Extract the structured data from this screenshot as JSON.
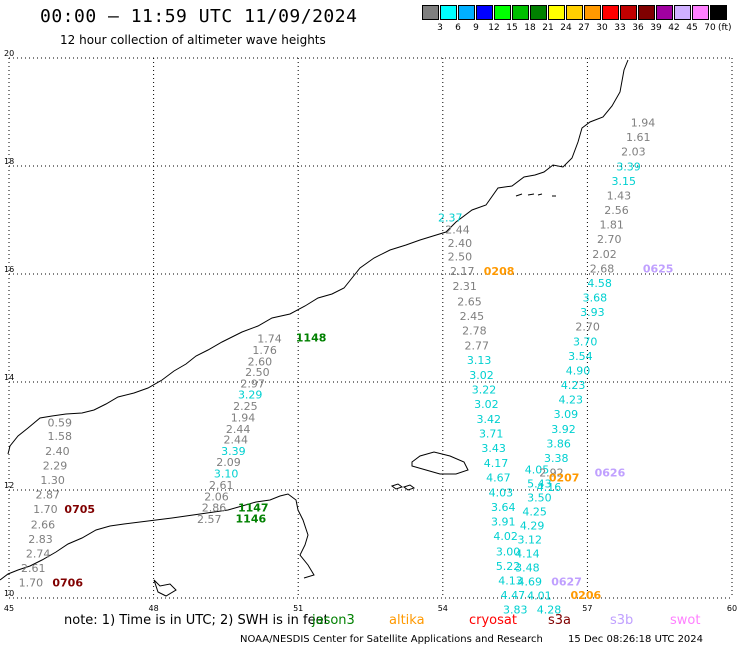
{
  "header": {
    "title": "00:00 – 11:59 UTC 11/09/2024",
    "subtitle": "12 hour collection of altimeter wave heights"
  },
  "colorbar": {
    "unit": "(ft)",
    "entries": [
      {
        "label": "3",
        "color": "#7f7f7f"
      },
      {
        "label": "6",
        "color": "#00ffff"
      },
      {
        "label": "9",
        "color": "#00b0ff"
      },
      {
        "label": "12",
        "color": "#0000ff"
      },
      {
        "label": "15",
        "color": "#00ff00"
      },
      {
        "label": "18",
        "color": "#00c000"
      },
      {
        "label": "21",
        "color": "#008000"
      },
      {
        "label": "24",
        "color": "#ffff00"
      },
      {
        "label": "27",
        "color": "#ffd000"
      },
      {
        "label": "30",
        "color": "#ff9900"
      },
      {
        "label": "33",
        "color": "#ff0000"
      },
      {
        "label": "36",
        "color": "#c00000"
      },
      {
        "label": "39",
        "color": "#800000"
      },
      {
        "label": "42",
        "color": "#a000a0"
      },
      {
        "label": "45",
        "color": "#d0b0ff"
      },
      {
        "label": "70",
        "color": "#ff80ff"
      },
      {
        "label": "",
        "color": "#000000"
      }
    ]
  },
  "axes": {
    "lon_ticks": [
      "45",
      "48",
      "51",
      "54",
      "57",
      "60"
    ],
    "lat_ticks": [
      "10",
      "12",
      "14",
      "16",
      "18",
      "20"
    ],
    "grid": true
  },
  "tracks": [
    {
      "labels": [
        {
          "text": "0.59",
          "lon": 45.8,
          "lat": 13.18,
          "color": "#7f7f7f"
        },
        {
          "text": "1.58",
          "lon": 45.8,
          "lat": 12.93,
          "color": "#7f7f7f"
        },
        {
          "text": "2.40",
          "lon": 45.75,
          "lat": 12.65,
          "color": "#7f7f7f"
        },
        {
          "text": "2.29",
          "lon": 45.7,
          "lat": 12.38,
          "color": "#7f7f7f"
        },
        {
          "text": "1.30",
          "lon": 45.65,
          "lat": 12.11,
          "color": "#7f7f7f"
        },
        {
          "text": "2.87",
          "lon": 45.55,
          "lat": 11.84,
          "color": "#7f7f7f"
        },
        {
          "text": "1.70",
          "lon": 45.5,
          "lat": 11.57,
          "color": "#7f7f7f"
        },
        {
          "text": "2.66",
          "lon": 45.45,
          "lat": 11.29,
          "color": "#7f7f7f"
        },
        {
          "text": "2.83",
          "lon": 45.4,
          "lat": 11.02,
          "color": "#7f7f7f"
        },
        {
          "text": "2.74",
          "lon": 45.35,
          "lat": 10.75,
          "color": "#7f7f7f"
        },
        {
          "text": "2.61",
          "lon": 45.25,
          "lat": 10.48,
          "color": "#7f7f7f"
        },
        {
          "text": "1.70",
          "lon": 45.2,
          "lat": 10.21,
          "color": "#7f7f7f"
        }
      ]
    },
    {
      "labels": [
        {
          "text": "1.74",
          "lon": 50.15,
          "lat": 14.73,
          "color": "#7f7f7f"
        },
        {
          "text": "1.76",
          "lon": 50.05,
          "lat": 14.52,
          "color": "#7f7f7f"
        },
        {
          "text": "2.60",
          "lon": 49.95,
          "lat": 14.31,
          "color": "#7f7f7f"
        },
        {
          "text": "2.50",
          "lon": 49.9,
          "lat": 14.11,
          "color": "#7f7f7f"
        },
        {
          "text": "2.97",
          "lon": 49.8,
          "lat": 13.9,
          "color": "#7f7f7f"
        },
        {
          "text": "3.29",
          "lon": 49.75,
          "lat": 13.69,
          "color": "#00d0d0"
        },
        {
          "text": "2.25",
          "lon": 49.65,
          "lat": 13.48,
          "color": "#7f7f7f"
        },
        {
          "text": "1.94",
          "lon": 49.6,
          "lat": 13.27,
          "color": "#7f7f7f"
        },
        {
          "text": "2.44",
          "lon": 49.5,
          "lat": 13.06,
          "color": "#7f7f7f"
        },
        {
          "text": "2.44",
          "lon": 49.45,
          "lat": 12.86,
          "color": "#7f7f7f"
        },
        {
          "text": "3.39",
          "lon": 49.4,
          "lat": 12.65,
          "color": "#00d0d0"
        },
        {
          "text": "2.09",
          "lon": 49.3,
          "lat": 12.44,
          "color": "#7f7f7f"
        },
        {
          "text": "3.10",
          "lon": 49.25,
          "lat": 12.23,
          "color": "#00d0d0"
        },
        {
          "text": "2.61",
          "lon": 49.15,
          "lat": 12.02,
          "color": "#7f7f7f"
        },
        {
          "text": "2.06",
          "lon": 49.05,
          "lat": 11.81,
          "color": "#7f7f7f"
        },
        {
          "text": "2.86",
          "lon": 49.0,
          "lat": 11.6,
          "color": "#7f7f7f"
        },
        {
          "text": "2.57",
          "lon": 48.9,
          "lat": 11.39,
          "color": "#7f7f7f"
        }
      ]
    },
    {
      "labels": [
        {
          "text": "2.37",
          "lon": 53.9,
          "lat": 16.97,
          "color": "#00d0d0"
        },
        {
          "text": "2.44",
          "lon": 54.05,
          "lat": 16.75,
          "color": "#7f7f7f"
        },
        {
          "text": "2.40",
          "lon": 54.1,
          "lat": 16.5,
          "color": "#7f7f7f"
        },
        {
          "text": "2.50",
          "lon": 54.1,
          "lat": 16.25,
          "color": "#7f7f7f"
        },
        {
          "text": "2.17",
          "lon": 54.15,
          "lat": 15.98,
          "color": "#7f7f7f"
        },
        {
          "text": "2.31",
          "lon": 54.2,
          "lat": 15.7,
          "color": "#7f7f7f"
        },
        {
          "text": "2.65",
          "lon": 54.3,
          "lat": 15.42,
          "color": "#7f7f7f"
        },
        {
          "text": "2.45",
          "lon": 54.35,
          "lat": 15.15,
          "color": "#7f7f7f"
        },
        {
          "text": "2.78",
          "lon": 54.4,
          "lat": 14.88,
          "color": "#7f7f7f"
        },
        {
          "text": "2.77",
          "lon": 54.45,
          "lat": 14.6,
          "color": "#7f7f7f"
        },
        {
          "text": "3.13",
          "lon": 54.5,
          "lat": 14.33,
          "color": "#00d0d0"
        },
        {
          "text": "3.02",
          "lon": 54.55,
          "lat": 14.06,
          "color": "#00d0d0"
        },
        {
          "text": "3.22",
          "lon": 54.6,
          "lat": 13.79,
          "color": "#00d0d0"
        },
        {
          "text": "3.02",
          "lon": 54.65,
          "lat": 13.52,
          "color": "#00d0d0"
        },
        {
          "text": "3.42",
          "lon": 54.7,
          "lat": 13.24,
          "color": "#00d0d0"
        },
        {
          "text": "3.71",
          "lon": 54.75,
          "lat": 12.97,
          "color": "#00d0d0"
        },
        {
          "text": "3.43",
          "lon": 54.8,
          "lat": 12.7,
          "color": "#00d0d0"
        },
        {
          "text": "4.17",
          "lon": 54.85,
          "lat": 12.43,
          "color": "#00d0d0"
        },
        {
          "text": "4.67",
          "lon": 54.9,
          "lat": 12.16,
          "color": "#00d0d0"
        },
        {
          "text": "4.03",
          "lon": 54.95,
          "lat": 11.88,
          "color": "#00d0d0"
        },
        {
          "text": "3.64",
          "lon": 55.0,
          "lat": 11.61,
          "color": "#00d0d0"
        },
        {
          "text": "3.91",
          "lon": 55.0,
          "lat": 11.34,
          "color": "#00d0d0"
        },
        {
          "text": "4.02",
          "lon": 55.05,
          "lat": 11.07,
          "color": "#00d0d0"
        },
        {
          "text": "3.00",
          "lon": 55.1,
          "lat": 10.79,
          "color": "#00d0d0"
        },
        {
          "text": "5.22",
          "lon": 55.1,
          "lat": 10.52,
          "color": "#00d0d0"
        },
        {
          "text": "4.13",
          "lon": 55.15,
          "lat": 10.25,
          "color": "#00d0d0"
        },
        {
          "text": "4.47",
          "lon": 55.2,
          "lat": 9.98,
          "color": "#00d0d0"
        },
        {
          "text": "3.83",
          "lon": 55.25,
          "lat": 9.71,
          "color": "#00d0d0"
        }
      ]
    },
    {
      "labels": [
        {
          "text": "4.05",
          "lon": 55.7,
          "lat": 12.31,
          "color": "#00d0d0"
        },
        {
          "text": "5.43",
          "lon": 55.75,
          "lat": 12.05,
          "color": "#00d0d0"
        },
        {
          "text": "3.50",
          "lon": 55.75,
          "lat": 11.79,
          "color": "#00d0d0"
        },
        {
          "text": "4.25",
          "lon": 55.65,
          "lat": 11.53,
          "color": "#00d0d0"
        },
        {
          "text": "4.29",
          "lon": 55.6,
          "lat": 11.27,
          "color": "#00d0d0"
        },
        {
          "text": "3.12",
          "lon": 55.55,
          "lat": 11.01,
          "color": "#00d0d0"
        },
        {
          "text": "4.14",
          "lon": 55.5,
          "lat": 10.75,
          "color": "#00d0d0"
        },
        {
          "text": "3.48",
          "lon": 55.5,
          "lat": 10.49,
          "color": "#00d0d0"
        },
        {
          "text": "4.69",
          "lon": 55.55,
          "lat": 10.23,
          "color": "#00d0d0"
        },
        {
          "text": "4.01",
          "lon": 55.75,
          "lat": 9.97,
          "color": "#00d0d0"
        },
        {
          "text": "4.28",
          "lon": 55.95,
          "lat": 9.71,
          "color": "#00d0d0"
        }
      ]
    },
    {
      "labels": [
        {
          "text": "1.94",
          "lon": 57.9,
          "lat": 18.73,
          "color": "#7f7f7f"
        },
        {
          "text": "1.61",
          "lon": 57.8,
          "lat": 18.46,
          "color": "#7f7f7f"
        },
        {
          "text": "2.03",
          "lon": 57.7,
          "lat": 18.19,
          "color": "#7f7f7f"
        },
        {
          "text": "3.39",
          "lon": 57.6,
          "lat": 17.92,
          "color": "#00d0d0"
        },
        {
          "text": "3.15",
          "lon": 57.5,
          "lat": 17.65,
          "color": "#00d0d0"
        },
        {
          "text": "1.43",
          "lon": 57.4,
          "lat": 17.38,
          "color": "#7f7f7f"
        },
        {
          "text": "2.56",
          "lon": 57.35,
          "lat": 17.11,
          "color": "#7f7f7f"
        },
        {
          "text": "1.81",
          "lon": 57.25,
          "lat": 16.84,
          "color": "#7f7f7f"
        },
        {
          "text": "2.70",
          "lon": 57.2,
          "lat": 16.57,
          "color": "#7f7f7f"
        },
        {
          "text": "2.02",
          "lon": 57.1,
          "lat": 16.3,
          "color": "#7f7f7f"
        },
        {
          "text": "2.68",
          "lon": 57.05,
          "lat": 16.03,
          "color": "#7f7f7f"
        },
        {
          "text": "4.58",
          "lon": 57.0,
          "lat": 15.76,
          "color": "#00d0d0"
        },
        {
          "text": "3.68",
          "lon": 56.9,
          "lat": 15.49,
          "color": "#00d0d0"
        },
        {
          "text": "3.93",
          "lon": 56.85,
          "lat": 15.22,
          "color": "#00d0d0"
        },
        {
          "text": "2.70",
          "lon": 56.75,
          "lat": 14.95,
          "color": "#7f7f7f"
        },
        {
          "text": "3.70",
          "lon": 56.7,
          "lat": 14.68,
          "color": "#00d0d0"
        },
        {
          "text": "3.54",
          "lon": 56.6,
          "lat": 14.41,
          "color": "#00d0d0"
        },
        {
          "text": "4.90",
          "lon": 56.55,
          "lat": 14.14,
          "color": "#00d0d0"
        },
        {
          "text": "4.23",
          "lon": 56.45,
          "lat": 13.87,
          "color": "#00d0d0"
        },
        {
          "text": "4.23",
          "lon": 56.4,
          "lat": 13.6,
          "color": "#00d0d0"
        },
        {
          "text": "3.09",
          "lon": 56.3,
          "lat": 13.33,
          "color": "#00d0d0"
        },
        {
          "text": "3.92",
          "lon": 56.25,
          "lat": 13.06,
          "color": "#00d0d0"
        },
        {
          "text": "3.86",
          "lon": 56.15,
          "lat": 12.79,
          "color": "#00d0d0"
        },
        {
          "text": "3.38",
          "lon": 56.1,
          "lat": 12.52,
          "color": "#00d0d0"
        },
        {
          "text": "2.92",
          "lon": 56.0,
          "lat": 12.25,
          "color": "#7f7f7f"
        },
        {
          "text": "4.16",
          "lon": 55.95,
          "lat": 11.98,
          "color": "#00d0d0"
        }
      ]
    }
  ],
  "pass_times": [
    {
      "text": "1148",
      "lon": 50.95,
      "lat": 14.75,
      "color": "#008000"
    },
    {
      "text": "1147",
      "lon": 49.75,
      "lat": 11.6,
      "color": "#008000"
    },
    {
      "text": "1146",
      "lon": 49.7,
      "lat": 11.4,
      "color": "#008000"
    },
    {
      "text": "0705",
      "lon": 46.15,
      "lat": 11.57,
      "color": "#800000"
    },
    {
      "text": "0706",
      "lon": 45.9,
      "lat": 10.21,
      "color": "#800000"
    },
    {
      "text": "0208",
      "lon": 54.85,
      "lat": 15.98,
      "color": "#ff9900"
    },
    {
      "text": "0207",
      "lon": 56.2,
      "lat": 12.16,
      "color": "#ff9900"
    },
    {
      "text": "0206",
      "lon": 56.65,
      "lat": 9.98,
      "color": "#ff9900"
    },
    {
      "text": "0625",
      "lon": 58.15,
      "lat": 16.03,
      "color": "#c0a0ff"
    },
    {
      "text": "0626",
      "lon": 57.15,
      "lat": 12.25,
      "color": "#c0a0ff"
    },
    {
      "text": "0627",
      "lon": 56.25,
      "lat": 10.23,
      "color": "#c0a0ff"
    }
  ],
  "note": {
    "prefix": "note: 1) Time is in UTC; 2) SWH is in feet",
    "overlay": "jason3",
    "missions": [
      {
        "name": "altika",
        "color": "#ff9900"
      },
      {
        "name": "cryosat",
        "color": "#ff0000"
      },
      {
        "name": "s3a",
        "color": "#800000"
      },
      {
        "name": "s3b",
        "color": "#c0a0ff"
      },
      {
        "name": "swot",
        "color": "#ff80ff"
      }
    ],
    "overlay_color": "#008000"
  },
  "footer": {
    "credit": "NOAA/NESDIS Center for Satellite Applications and Research",
    "timestamp": "15 Dec 08:26:18 UTC 2024"
  }
}
